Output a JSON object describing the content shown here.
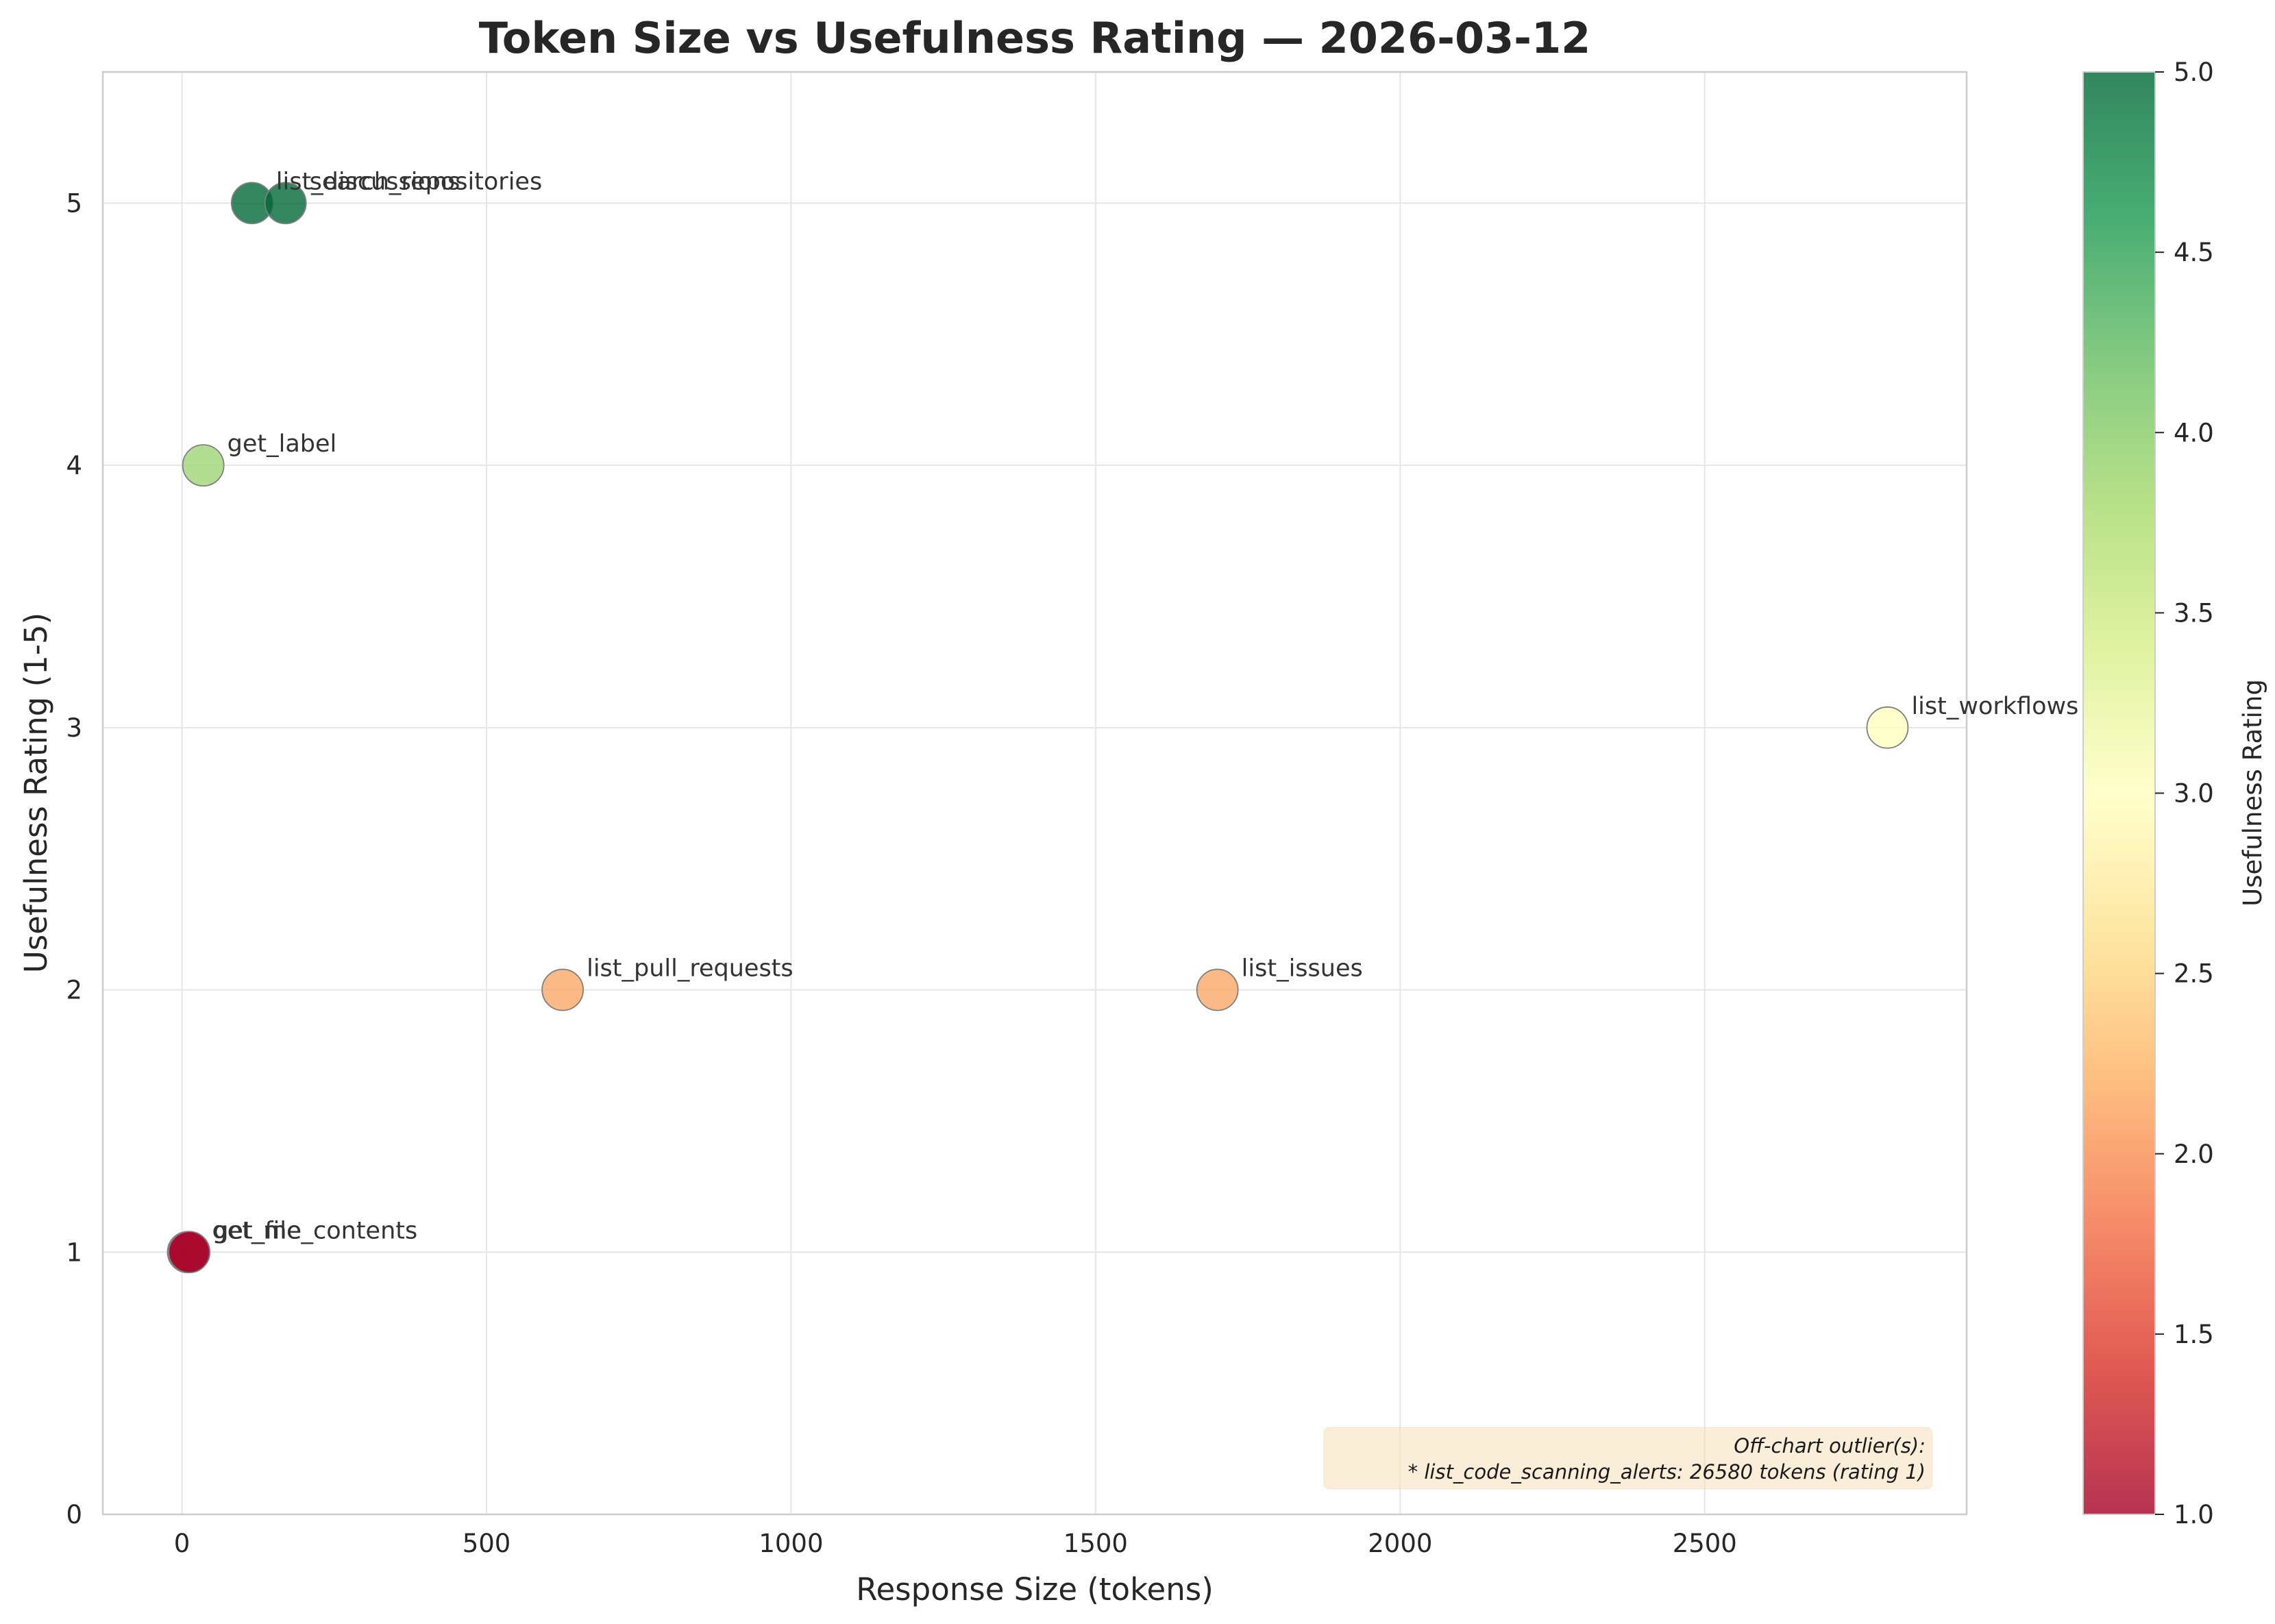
{
  "chart_data": {
    "type": "scatter",
    "title": "Token Size vs Usefulness Rating — 2026-03-12",
    "xlabel": "Response Size (tokens)",
    "ylabel": "Usefulness Rating (1-5)",
    "xlim": [
      -130,
      2930
    ],
    "ylim": [
      0,
      5.5
    ],
    "xticks": [
      0,
      500,
      1000,
      1500,
      2000,
      2500
    ],
    "yticks": [
      0,
      1,
      2,
      3,
      4,
      5
    ],
    "grid": true,
    "points": [
      {
        "label": "list_discussions",
        "x": 115,
        "y": 5
      },
      {
        "label": "search_repositories",
        "x": 170,
        "y": 5
      },
      {
        "label": "get_label",
        "x": 35,
        "y": 4
      },
      {
        "label": "list_workflows",
        "x": 2800,
        "y": 3
      },
      {
        "label": "list_pull_requests",
        "x": 625,
        "y": 2
      },
      {
        "label": "list_issues",
        "x": 1700,
        "y": 2
      },
      {
        "label": "get_me",
        "x": 10,
        "y": 1
      },
      {
        "label": "get_file_contents",
        "x": 12,
        "y": 1
      }
    ],
    "colorbar": {
      "label": "Usefulness Rating",
      "range": [
        1,
        5
      ],
      "ticks": [
        "1.0",
        "1.5",
        "2.0",
        "2.5",
        "3.0",
        "3.5",
        "4.0",
        "4.5",
        "5.0"
      ],
      "colormap": [
        "#a50026",
        "#f46d43",
        "#fee08b",
        "#ffffbf",
        "#d9ef8b",
        "#66bd63",
        "#006837"
      ]
    },
    "annotation": {
      "lines": [
        "Off-chart outlier(s):",
        "* list_code_scanning_alerts: 26580 tokens (rating 1)"
      ],
      "placement": "bottom-right"
    }
  }
}
